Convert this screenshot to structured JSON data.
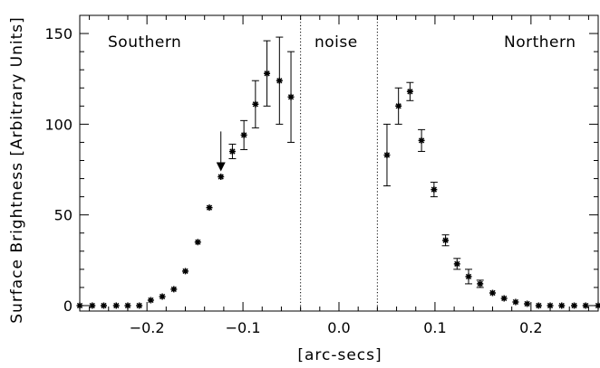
{
  "chart_data": {
    "type": "scatter",
    "xlabel": "[arc-secs]",
    "ylabel": "Surface Brightness [Arbitrary Units]",
    "xlim": [
      -0.27,
      0.27
    ],
    "ylim": [
      -3,
      160
    ],
    "x_ticks": [
      -0.2,
      -0.1,
      0.0,
      0.1,
      0.2
    ],
    "x_tick_labels": [
      "−0.2",
      "−0.1",
      "0.0",
      "0.1",
      "0.2"
    ],
    "y_ticks": [
      0,
      50,
      100,
      150
    ],
    "y_tick_labels": [
      "0",
      "50",
      "100",
      "150"
    ],
    "x_minor_step": 0.02,
    "y_minor_step": 10,
    "grid": false,
    "marker": "asterisk",
    "region_labels": {
      "southern": "Southern",
      "noise": "noise",
      "northern": "Northern"
    },
    "noise_boundaries": [
      -0.04,
      0.04
    ],
    "upper_limit_arrow": {
      "x": -0.123,
      "y_from": 96,
      "y_to": 74
    },
    "points": [
      {
        "x": -0.27,
        "y": 0
      },
      {
        "x": -0.257,
        "y": 0
      },
      {
        "x": -0.245,
        "y": 0
      },
      {
        "x": -0.232,
        "y": 0
      },
      {
        "x": -0.22,
        "y": 0
      },
      {
        "x": -0.208,
        "y": 0
      },
      {
        "x": -0.196,
        "y": 3
      },
      {
        "x": -0.184,
        "y": 5
      },
      {
        "x": -0.172,
        "y": 9
      },
      {
        "x": -0.16,
        "y": 19
      },
      {
        "x": -0.147,
        "y": 35
      },
      {
        "x": -0.135,
        "y": 54
      },
      {
        "x": -0.123,
        "y": 71
      },
      {
        "x": -0.111,
        "y": 85,
        "err": 4
      },
      {
        "x": -0.099,
        "y": 94,
        "err": 8
      },
      {
        "x": -0.087,
        "y": 111,
        "err": 13
      },
      {
        "x": -0.075,
        "y": 128,
        "err": 18
      },
      {
        "x": -0.062,
        "y": 124,
        "err": 24
      },
      {
        "x": -0.05,
        "y": 115,
        "err": 25
      },
      {
        "x": 0.05,
        "y": 83,
        "err": 17
      },
      {
        "x": 0.062,
        "y": 110,
        "err": 10
      },
      {
        "x": 0.074,
        "y": 118,
        "err": 5
      },
      {
        "x": 0.086,
        "y": 91,
        "err": 6
      },
      {
        "x": 0.099,
        "y": 64,
        "err": 4
      },
      {
        "x": 0.111,
        "y": 36,
        "err": 3
      },
      {
        "x": 0.123,
        "y": 23,
        "err": 3
      },
      {
        "x": 0.135,
        "y": 16,
        "err": 4
      },
      {
        "x": 0.147,
        "y": 12,
        "err": 2
      },
      {
        "x": 0.16,
        "y": 7
      },
      {
        "x": 0.172,
        "y": 4
      },
      {
        "x": 0.184,
        "y": 2
      },
      {
        "x": 0.196,
        "y": 1
      },
      {
        "x": 0.208,
        "y": 0
      },
      {
        "x": 0.22,
        "y": 0
      },
      {
        "x": 0.232,
        "y": 0
      },
      {
        "x": 0.245,
        "y": 0
      },
      {
        "x": 0.257,
        "y": 0
      },
      {
        "x": 0.27,
        "y": 0
      }
    ]
  }
}
